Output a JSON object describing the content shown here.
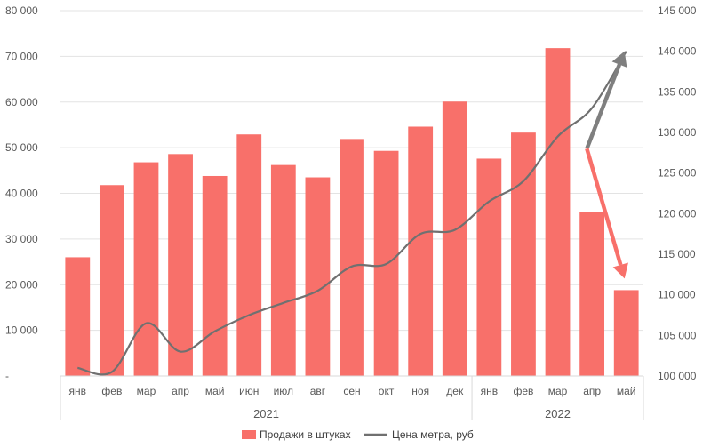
{
  "chart_data": {
    "type": "bar",
    "categories": [
      "янв",
      "фев",
      "мар",
      "апр",
      "май",
      "июн",
      "июл",
      "авг",
      "сен",
      "окт",
      "ноя",
      "дек",
      "янв",
      "фев",
      "мар",
      "апр",
      "май"
    ],
    "years": [
      {
        "label": "2021",
        "from": 0,
        "to": 11
      },
      {
        "label": "2022",
        "from": 12,
        "to": 16
      }
    ],
    "series": [
      {
        "name": "Продажи в штуках",
        "type": "bar",
        "axis": "left",
        "color": "#F8706A",
        "values": [
          26000,
          41800,
          46800,
          48600,
          43800,
          52900,
          46200,
          43500,
          51900,
          49300,
          54600,
          60100,
          47600,
          53300,
          71800,
          36000,
          18800
        ]
      },
      {
        "name": "Цена метра, руб",
        "type": "line",
        "axis": "right",
        "color": "#707070",
        "values": [
          101000,
          100500,
          106500,
          103000,
          105500,
          107500,
          109000,
          110500,
          113500,
          113800,
          117500,
          118000,
          121500,
          124000,
          129500,
          133000,
          140000
        ]
      }
    ],
    "yaxis_left": {
      "min": 0,
      "max": 80000,
      "ticks": [
        "-",
        "10 000",
        "20 000",
        "30 000",
        "40 000",
        "50 000",
        "60 000",
        "70 000",
        "80 000"
      ]
    },
    "yaxis_right": {
      "min": 100000,
      "max": 145000,
      "ticks": [
        "100 000",
        "105 000",
        "110 000",
        "115 000",
        "120 000",
        "125 000",
        "130 000",
        "135 000",
        "140 000",
        "145 000"
      ]
    },
    "annotations": [
      {
        "name": "up-arrow",
        "color": "#7F7F7F",
        "from_index": 15,
        "from_value_right": 128000,
        "to_index": 16,
        "to_value_right": 140000
      },
      {
        "name": "down-arrow",
        "color": "#F8706A",
        "from_index": 15,
        "from_value_right": 128000,
        "to_index": 16,
        "to_value_right": 112000
      }
    ],
    "grid": true,
    "legend_position": "bottom"
  }
}
